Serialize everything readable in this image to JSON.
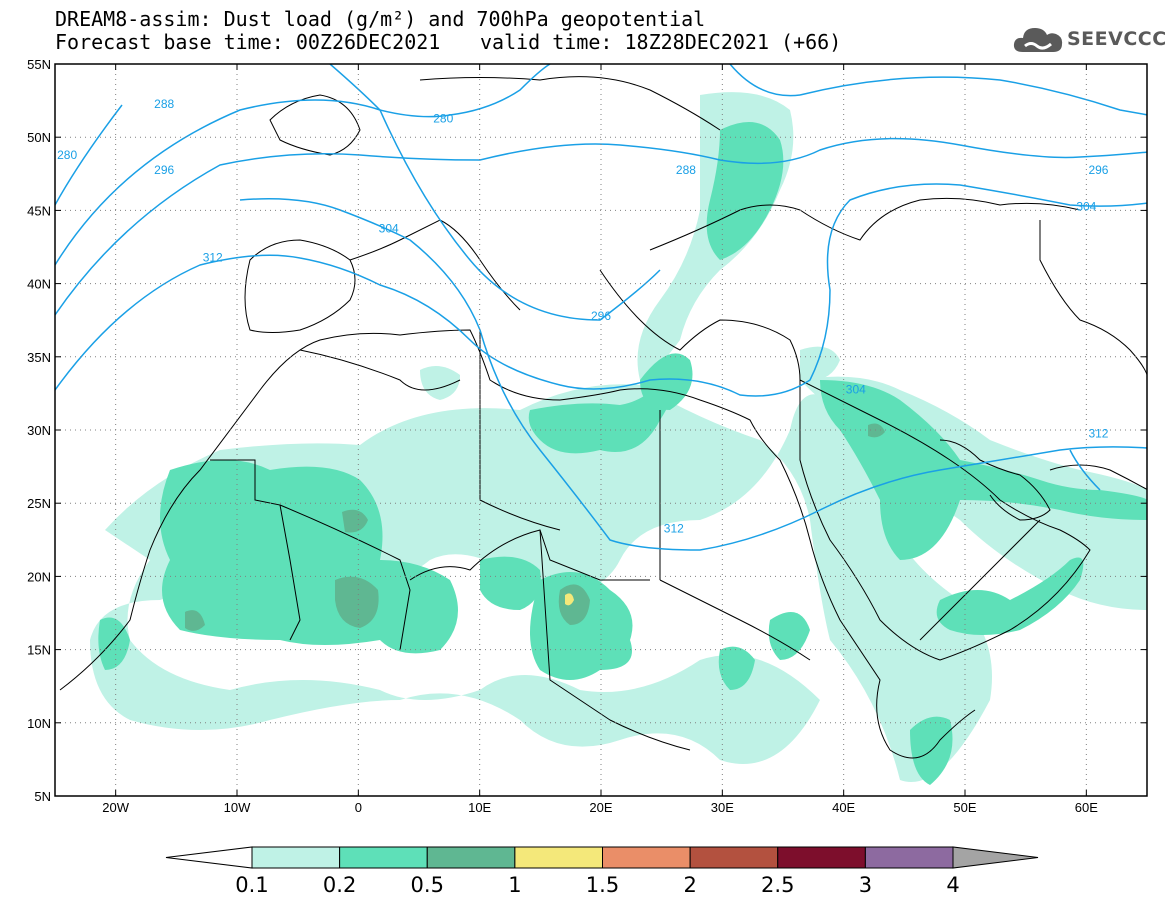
{
  "title": {
    "line1": "DREAM8-assim: Dust load (g/m²) and 700hPa geopotential",
    "line2_left": "Forecast base time: 00Z26DEC2021",
    "line2_right": "valid time: 18Z28DEC2021 (+66)"
  },
  "logo": {
    "text": "SEEVCCC",
    "icon": "cloud-icon"
  },
  "map": {
    "lon_range": [
      -25,
      65
    ],
    "lat_range": [
      5,
      55
    ],
    "lat_ticks": [
      {
        "value": 55,
        "label": "55N"
      },
      {
        "value": 50,
        "label": "50N"
      },
      {
        "value": 45,
        "label": "45N"
      },
      {
        "value": 40,
        "label": "40N"
      },
      {
        "value": 35,
        "label": "35N"
      },
      {
        "value": 30,
        "label": "30N"
      },
      {
        "value": 25,
        "label": "25N"
      },
      {
        "value": 20,
        "label": "20N"
      },
      {
        "value": 15,
        "label": "15N"
      },
      {
        "value": 10,
        "label": "10N"
      },
      {
        "value": 5,
        "label": "5N"
      }
    ],
    "lon_ticks": [
      {
        "value": -20,
        "label": "20W"
      },
      {
        "value": -10,
        "label": "10W"
      },
      {
        "value": 0,
        "label": "0"
      },
      {
        "value": 10,
        "label": "10E"
      },
      {
        "value": 20,
        "label": "20E"
      },
      {
        "value": 30,
        "label": "30E"
      },
      {
        "value": 40,
        "label": "40E"
      },
      {
        "value": 50,
        "label": "50E"
      },
      {
        "value": 60,
        "label": "60E"
      }
    ],
    "contour_color": "#1aa0e6",
    "contour_labels": [
      {
        "text": "280",
        "lon": -24,
        "lat": 48.5
      },
      {
        "text": "288",
        "lon": -16,
        "lat": 52
      },
      {
        "text": "280",
        "lon": 7,
        "lat": 51
      },
      {
        "text": "296",
        "lon": -16,
        "lat": 47.5
      },
      {
        "text": "288",
        "lon": 27,
        "lat": 47.5
      },
      {
        "text": "296",
        "lon": 61,
        "lat": 47.5
      },
      {
        "text": "304",
        "lon": 60,
        "lat": 45
      },
      {
        "text": "304",
        "lon": 2.5,
        "lat": 43.5
      },
      {
        "text": "312",
        "lon": -12,
        "lat": 41.5
      },
      {
        "text": "296",
        "lon": 20,
        "lat": 37.5
      },
      {
        "text": "304",
        "lon": 41,
        "lat": 32.5
      },
      {
        "text": "312",
        "lon": 61,
        "lat": 29.5
      },
      {
        "text": "312",
        "lon": 26,
        "lat": 23
      }
    ]
  },
  "colorbar": {
    "labels": [
      "0.1",
      "0.2",
      "0.5",
      "1",
      "1.5",
      "2",
      "2.5",
      "3",
      "4"
    ],
    "colors": [
      "#bff2e6",
      "#5ee0b8",
      "#5fb792",
      "#f4e87a",
      "#ea8e68",
      "#b3513f",
      "#7d0e2c",
      "#8d6aa0"
    ],
    "under_color": "#ffffff",
    "over_color": "#a4a4a4"
  }
}
